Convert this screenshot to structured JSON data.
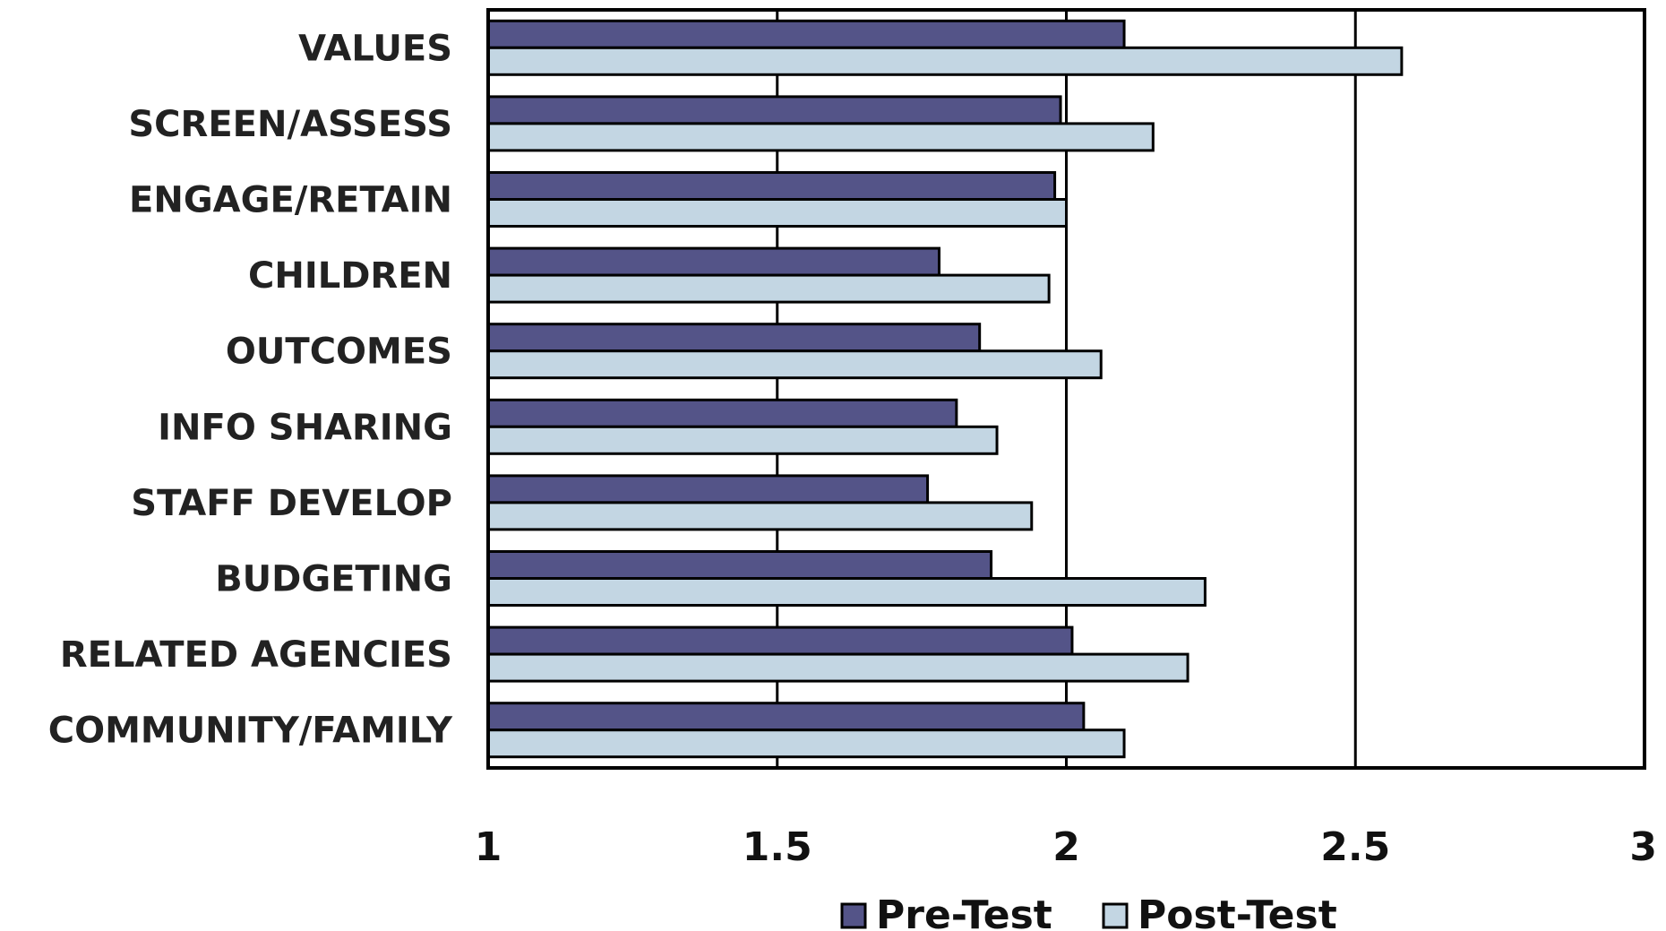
{
  "chart_data": {
    "type": "bar",
    "orientation": "horizontal",
    "categories": [
      "VALUES",
      "SCREEN/ASSESS",
      "ENGAGE/RETAIN",
      "CHILDREN",
      "OUTCOMES",
      "INFO SHARING",
      "STAFF DEVELOP",
      "BUDGETING",
      "RELATED AGENCIES",
      "COMMUNITY/FAMILY"
    ],
    "series": [
      {
        "name": "Pre-Test",
        "color": "#545488",
        "values": [
          2.1,
          1.99,
          1.98,
          1.78,
          1.85,
          1.81,
          1.76,
          1.87,
          2.01,
          2.03
        ]
      },
      {
        "name": "Post-Test",
        "color": "#c3d6e3",
        "values": [
          2.58,
          2.15,
          2.0,
          1.97,
          2.06,
          1.88,
          1.94,
          2.24,
          2.21,
          2.1
        ]
      }
    ],
    "xlim": [
      1,
      3
    ],
    "xticks": [
      "1",
      "1.5",
      "2",
      "2.5",
      "3"
    ],
    "grid": "vertical gridlines",
    "legend": "bottom",
    "title": "",
    "xlabel": "",
    "ylabel": ""
  }
}
